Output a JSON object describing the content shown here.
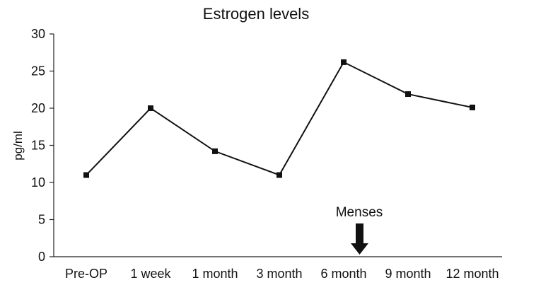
{
  "chart_data": {
    "type": "line",
    "title": "Estrogen levels",
    "xlabel": "",
    "ylabel": "pg/ml",
    "categories": [
      "Pre-OP",
      "1 week",
      "1 month",
      "3 month",
      "6 month",
      "9 month",
      "12 month"
    ],
    "values": [
      11,
      20,
      14.2,
      11,
      26.2,
      21.9,
      20.1
    ],
    "ylim": [
      0,
      30
    ],
    "yticks": [
      0,
      5,
      10,
      15,
      20,
      25,
      30
    ],
    "grid": false,
    "legend": "none",
    "annotation": {
      "text": "Menses",
      "category": "6 month",
      "marker": "down-arrow"
    },
    "colors": {
      "line": "#111111",
      "marker": "#111111",
      "axis": "#222222"
    }
  }
}
